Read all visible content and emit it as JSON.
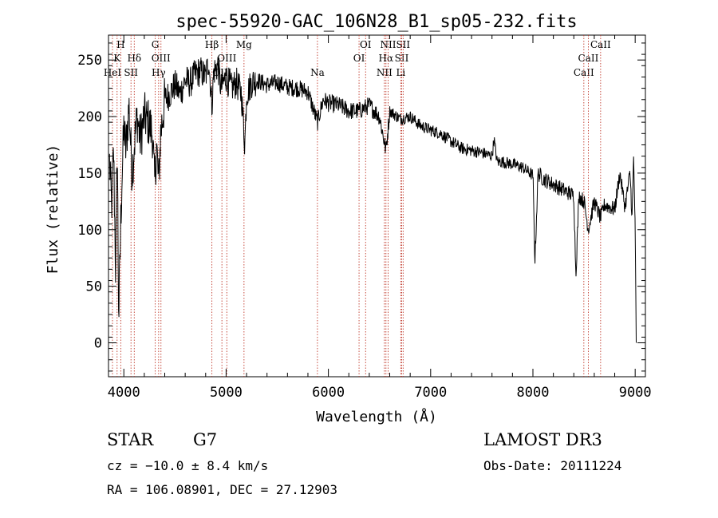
{
  "chart_data": {
    "type": "line",
    "title": "spec-55920-GAC_106N28_B1_sp05-232.fits",
    "xlabel": "Wavelength (Å)",
    "ylabel": "Flux (relative)",
    "xlim": [
      3850,
      9100
    ],
    "ylim": [
      -30,
      272
    ],
    "xticks": [
      4000,
      5000,
      6000,
      7000,
      8000,
      9000
    ],
    "yticks": [
      0,
      50,
      100,
      150,
      200,
      250
    ],
    "spectrum_anchors": [
      [
        3860,
        160
      ],
      [
        3880,
        120
      ],
      [
        3900,
        170
      ],
      [
        3920,
        60
      ],
      [
        3935,
        180
      ],
      [
        3950,
        20
      ],
      [
        3968,
        100
      ],
      [
        3980,
        140
      ],
      [
        4000,
        190
      ],
      [
        4020,
        170
      ],
      [
        4050,
        210
      ],
      [
        4080,
        150
      ],
      [
        4102,
        175
      ],
      [
        4130,
        200
      ],
      [
        4160,
        180
      ],
      [
        4200,
        200
      ],
      [
        4240,
        195
      ],
      [
        4280,
        185
      ],
      [
        4300,
        140
      ],
      [
        4320,
        175
      ],
      [
        4340,
        140
      ],
      [
        4360,
        185
      ],
      [
        4400,
        215
      ],
      [
        4450,
        220
      ],
      [
        4500,
        228
      ],
      [
        4550,
        220
      ],
      [
        4600,
        232
      ],
      [
        4650,
        230
      ],
      [
        4700,
        238
      ],
      [
        4750,
        240
      ],
      [
        4800,
        235
      ],
      [
        4830,
        250
      ],
      [
        4861,
        210
      ],
      [
        4880,
        240
      ],
      [
        4920,
        245
      ],
      [
        4950,
        225
      ],
      [
        5000,
        235
      ],
      [
        5050,
        225
      ],
      [
        5100,
        230
      ],
      [
        5150,
        220
      ],
      [
        5183,
        175
      ],
      [
        5200,
        220
      ],
      [
        5250,
        230
      ],
      [
        5300,
        232
      ],
      [
        5400,
        228
      ],
      [
        5500,
        230
      ],
      [
        5600,
        226
      ],
      [
        5700,
        225
      ],
      [
        5800,
        222
      ],
      [
        5893,
        195
      ],
      [
        5950,
        215
      ],
      [
        6000,
        212
      ],
      [
        6100,
        210
      ],
      [
        6200,
        205
      ],
      [
        6300,
        205
      ],
      [
        6400,
        210
      ],
      [
        6500,
        200
      ],
      [
        6563,
        170
      ],
      [
        6600,
        205
      ],
      [
        6700,
        198
      ],
      [
        6800,
        200
      ],
      [
        6900,
        192
      ],
      [
        7000,
        188
      ],
      [
        7100,
        185
      ],
      [
        7200,
        178
      ],
      [
        7300,
        172
      ],
      [
        7400,
        170
      ],
      [
        7500,
        168
      ],
      [
        7600,
        165
      ],
      [
        7620,
        180
      ],
      [
        7650,
        160
      ],
      [
        7700,
        160
      ],
      [
        7800,
        158
      ],
      [
        7900,
        155
      ],
      [
        8000,
        148
      ],
      [
        8020,
        72
      ],
      [
        8050,
        150
      ],
      [
        8100,
        145
      ],
      [
        8200,
        140
      ],
      [
        8300,
        135
      ],
      [
        8400,
        130
      ],
      [
        8420,
        60
      ],
      [
        8450,
        130
      ],
      [
        8500,
        125
      ],
      [
        8542,
        100
      ],
      [
        8600,
        125
      ],
      [
        8662,
        110
      ],
      [
        8700,
        122
      ],
      [
        8800,
        118
      ],
      [
        8850,
        150
      ],
      [
        8900,
        120
      ],
      [
        8950,
        150
      ],
      [
        8970,
        110
      ],
      [
        8985,
        165
      ],
      [
        9000,
        100
      ],
      [
        9010,
        0
      ]
    ],
    "line_markers": [
      {
        "wl": 3934,
        "label": "K",
        "row": 1
      },
      {
        "wl": 3970,
        "label": "H",
        "row": 0
      },
      {
        "wl": 3889,
        "label": "HeI",
        "row": 2
      },
      {
        "wl": 4070,
        "label": "SII",
        "row": 2
      },
      {
        "wl": 4102,
        "label": "Hδ",
        "row": 1
      },
      {
        "wl": 4307,
        "label": "G",
        "row": 0
      },
      {
        "wl": 4340,
        "label": "Hγ",
        "row": 2
      },
      {
        "wl": 4363,
        "label": "OIII",
        "row": 1
      },
      {
        "wl": 4861,
        "label": "Hβ",
        "row": 0
      },
      {
        "wl": 4959,
        "label": "OIII",
        "row": 2
      },
      {
        "wl": 5007,
        "label": "OIII",
        "row": 1
      },
      {
        "wl": 5175,
        "label": "Mg",
        "row": 0
      },
      {
        "wl": 5893,
        "label": "Na",
        "row": 2
      },
      {
        "wl": 6300,
        "label": "OI",
        "row": 1
      },
      {
        "wl": 6364,
        "label": "OI",
        "row": 0
      },
      {
        "wl": 6548,
        "label": "NII",
        "row": 2
      },
      {
        "wl": 6563,
        "label": "Hα",
        "row": 1
      },
      {
        "wl": 6584,
        "label": "NII",
        "row": 0
      },
      {
        "wl": 6717,
        "label": "SII",
        "row": 1
      },
      {
        "wl": 6731,
        "label": "SII",
        "row": 0
      },
      {
        "wl": 6708,
        "label": "Li",
        "row": 2
      },
      {
        "wl": 8498,
        "label": "CaII",
        "row": 2
      },
      {
        "wl": 8542,
        "label": "CaII",
        "row": 1
      },
      {
        "wl": 8662,
        "label": "CaII",
        "row": 0
      }
    ]
  },
  "info": {
    "object_class": "STAR",
    "subclass": "G7",
    "survey": "LAMOST DR3",
    "cz": "cz = −10.0 ± 8.4 km/s",
    "obs_date": "Obs-Date: 20111224",
    "radec": "RA = 106.08901, DEC =  27.12903"
  }
}
